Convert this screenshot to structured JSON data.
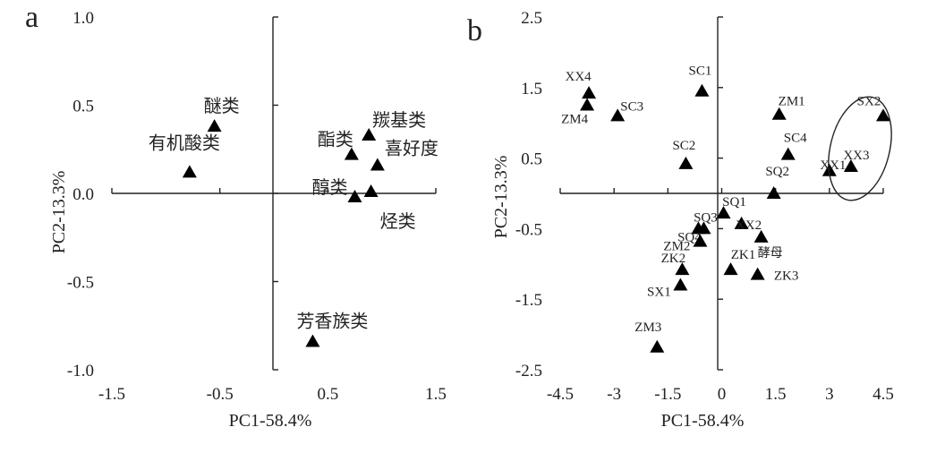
{
  "chart_data": [
    {
      "type": "scatter",
      "panel": "a",
      "xlabel": "PC1-58.4%",
      "ylabel": "PC2-13.3%",
      "xlim": [
        -1.5,
        1.5
      ],
      "ylim": [
        -1.0,
        1.0
      ],
      "xticks": [
        "-1.5",
        "-0.5",
        "0.5",
        "1.5"
      ],
      "xtick_values": [
        -1.5,
        -0.5,
        0.5,
        1.5
      ],
      "yticks": [
        "1.0",
        "0.5",
        "0.0",
        "-0.5",
        "-1.0"
      ],
      "ytick_values": [
        1.0,
        0.5,
        0.0,
        -0.5,
        -1.0
      ],
      "points": [
        {
          "label": "醚类",
          "x": -0.55,
          "y": 0.38
        },
        {
          "label": "有机酸类",
          "x": -0.78,
          "y": 0.12
        },
        {
          "label": "羰基类",
          "x": 0.88,
          "y": 0.33
        },
        {
          "label": "酯类",
          "x": 0.72,
          "y": 0.22
        },
        {
          "label": "喜好度",
          "x": 0.96,
          "y": 0.16
        },
        {
          "label": "醇类",
          "x": 0.75,
          "y": -0.02
        },
        {
          "label": "烃类",
          "x": 0.9,
          "y": 0.01
        },
        {
          "label": "芳香族类",
          "x": 0.36,
          "y": -0.84
        }
      ]
    },
    {
      "type": "scatter",
      "panel": "b",
      "xlabel": "PC1-58.4%",
      "ylabel": "PC2-13.3%",
      "xlim": [
        -4.5,
        4.5
      ],
      "ylim": [
        -2.5,
        2.5
      ],
      "xticks": [
        "-4.5",
        "-3",
        "-1.5",
        "0",
        "1.5",
        "3",
        "4.5"
      ],
      "xtick_values": [
        -4.5,
        -3,
        -1.5,
        0,
        1.5,
        3,
        4.5
      ],
      "yticks": [
        "2.5",
        "1.5",
        "0.5",
        "-0.5",
        "-1.5",
        "-2.5"
      ],
      "ytick_values": [
        2.5,
        1.5,
        0.5,
        -0.5,
        -1.5,
        -2.5
      ],
      "points": [
        {
          "label": "XX4",
          "x": -3.7,
          "y": 1.42
        },
        {
          "label": "ZM4",
          "x": -3.75,
          "y": 1.25
        },
        {
          "label": "SC3",
          "x": -2.9,
          "y": 1.1
        },
        {
          "label": "SC1",
          "x": -0.55,
          "y": 1.45
        },
        {
          "label": "ZM1",
          "x": 1.6,
          "y": 1.12
        },
        {
          "label": "SX2",
          "x": 4.5,
          "y": 1.1
        },
        {
          "label": "SC2",
          "x": -1.0,
          "y": 0.42
        },
        {
          "label": "SC4",
          "x": 1.85,
          "y": 0.55
        },
        {
          "label": "XX1",
          "x": 3.0,
          "y": 0.32
        },
        {
          "label": "XX3",
          "x": 3.6,
          "y": 0.38
        },
        {
          "label": "SQ2",
          "x": 1.45,
          "y": 0.0
        },
        {
          "label": "SQ3",
          "x": -0.65,
          "y": -0.5
        },
        {
          "label": "SQ1",
          "x": 0.05,
          "y": -0.28
        },
        {
          "label": "XX2",
          "x": 0.55,
          "y": -0.43
        },
        {
          "label": "SQ4",
          "x": -0.5,
          "y": -0.5
        },
        {
          "label": "酵母",
          "x": 1.1,
          "y": -0.62
        },
        {
          "label": "ZM2",
          "x": -0.6,
          "y": -0.68
        },
        {
          "label": "ZK2",
          "x": -1.1,
          "y": -1.08
        },
        {
          "label": "ZK1",
          "x": 0.25,
          "y": -1.08
        },
        {
          "label": "ZK3",
          "x": 1.0,
          "y": -1.15
        },
        {
          "label": "SX1",
          "x": -1.15,
          "y": -1.3
        },
        {
          "label": "ZM3",
          "x": -1.8,
          "y": -2.18
        }
      ]
    }
  ],
  "panels": [
    "a",
    "b"
  ]
}
